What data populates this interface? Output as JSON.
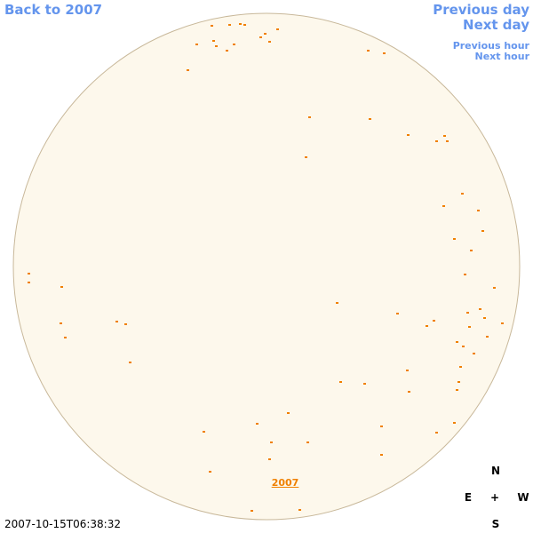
{
  "nav": {
    "back": "Back to 2007",
    "previous_day": "Previous day",
    "next_day": "Next day",
    "previous_hour": "Previous hour",
    "next_hour": "Next hour"
  },
  "year_link": "2007",
  "timestamp": "2007-10-15T06:38:32",
  "compass": {
    "north": "N",
    "east": "E",
    "center": "+",
    "west": "W",
    "south": "S"
  }
}
